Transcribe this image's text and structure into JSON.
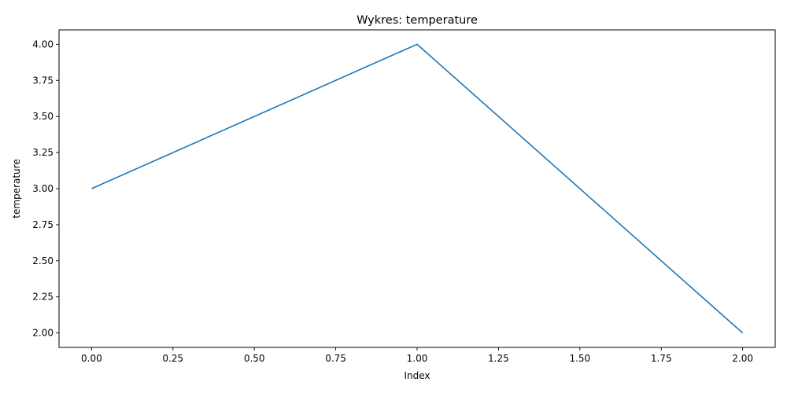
{
  "chart_data": {
    "type": "line",
    "title": "Wykres: temperature",
    "xlabel": "Index",
    "ylabel": "temperature",
    "x": [
      0,
      1,
      2
    ],
    "series": [
      {
        "values": [
          3,
          4,
          2
        ],
        "color": "#1f77b4"
      }
    ],
    "xlim": [
      -0.1,
      2.1
    ],
    "ylim": [
      1.9,
      4.1
    ],
    "xticks": [
      0,
      0.25,
      0.5,
      0.75,
      1,
      1.25,
      1.5,
      1.75,
      2
    ],
    "xtick_labels": [
      "0.00",
      "0.25",
      "0.50",
      "0.75",
      "1.00",
      "1.25",
      "1.50",
      "1.75",
      "2.00"
    ],
    "yticks": [
      2,
      2.25,
      2.5,
      2.75,
      3,
      3.25,
      3.5,
      3.75,
      4
    ],
    "ytick_labels": [
      "2.00",
      "2.25",
      "2.50",
      "2.75",
      "3.00",
      "3.25",
      "3.50",
      "3.75",
      "4.00"
    ],
    "grid": false,
    "legend": "none"
  }
}
